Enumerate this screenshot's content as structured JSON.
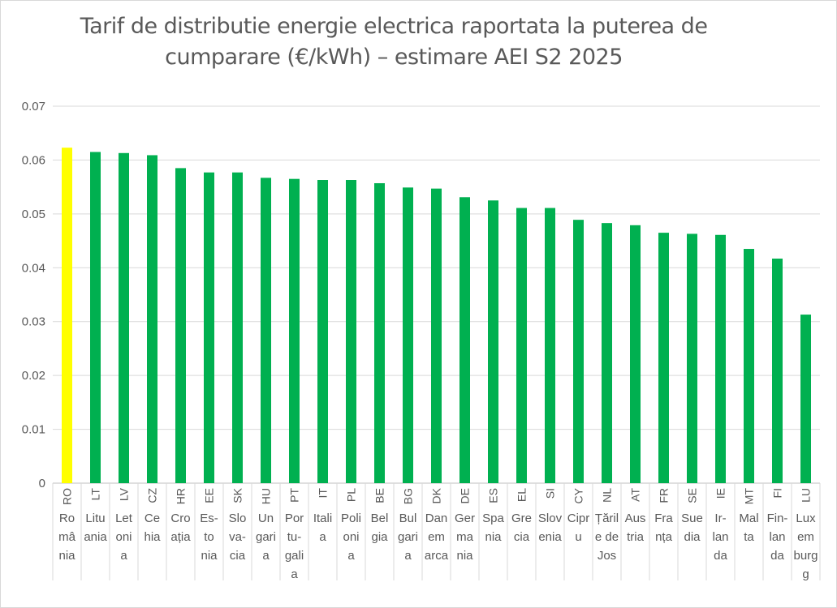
{
  "chart_data": {
    "type": "bar",
    "title": "Tarif de distributie energie electrica raportata la puterea de cumparare (€/kWh) – estimare AEI S2 2025",
    "xlabel": "",
    "ylabel": "",
    "ylim": [
      0,
      0.07
    ],
    "yticks": [
      "0",
      "0.01",
      "0.02",
      "0.03",
      "0.04",
      "0.05",
      "0.06",
      "0.07"
    ],
    "grid": true,
    "categories": [
      {
        "code": "RO",
        "name": [
          "Ro",
          "mâ",
          "nia"
        ]
      },
      {
        "code": "LT",
        "name": [
          "Litu",
          "ania"
        ]
      },
      {
        "code": "LV",
        "name": [
          "Let",
          "oni",
          "a"
        ]
      },
      {
        "code": "CZ",
        "name": [
          "Ce",
          "hia"
        ]
      },
      {
        "code": "HR",
        "name": [
          "Cro",
          "ația"
        ]
      },
      {
        "code": "EE",
        "name": [
          "Es-",
          "to",
          "nia"
        ]
      },
      {
        "code": "SK",
        "name": [
          "Slo",
          "va-",
          "cia"
        ]
      },
      {
        "code": "HU",
        "name": [
          "Un",
          "gari",
          "a"
        ]
      },
      {
        "code": "PT",
        "name": [
          "Por",
          "tu-",
          "gali",
          "a"
        ]
      },
      {
        "code": "IT",
        "name": [
          "Itali",
          "a"
        ]
      },
      {
        "code": "PL",
        "name": [
          "Poli",
          "oni",
          "a"
        ]
      },
      {
        "code": "BE",
        "name": [
          "Bel",
          "gia"
        ]
      },
      {
        "code": "BG",
        "name": [
          "Bul",
          "gari",
          "a"
        ]
      },
      {
        "code": "DK",
        "name": [
          "Dan",
          "em",
          "arca"
        ]
      },
      {
        "code": "DE",
        "name": [
          "Ger",
          "ma",
          "nia"
        ]
      },
      {
        "code": "ES",
        "name": [
          "Spa",
          "nia"
        ]
      },
      {
        "code": "EL",
        "name": [
          "Gre",
          "cia"
        ]
      },
      {
        "code": "SI",
        "name": [
          "Slov",
          "enia"
        ]
      },
      {
        "code": "CY",
        "name": [
          "Cipr",
          "u"
        ]
      },
      {
        "code": "NL",
        "name": [
          "Țăril",
          "e de",
          "Jos"
        ]
      },
      {
        "code": "AT",
        "name": [
          "Aus",
          "tria"
        ]
      },
      {
        "code": "FR",
        "name": [
          "Fra",
          "nța"
        ]
      },
      {
        "code": "SE",
        "name": [
          "Sue",
          "dia"
        ]
      },
      {
        "code": "IE",
        "name": [
          "Ir-",
          "lan",
          "da"
        ]
      },
      {
        "code": "MT",
        "name": [
          "Mal",
          "ta"
        ]
      },
      {
        "code": "FI",
        "name": [
          "Fin-",
          "lan",
          "da"
        ]
      },
      {
        "code": "LU",
        "name": [
          "Lux",
          "em",
          "burg",
          "g"
        ]
      }
    ],
    "values": [
      0.0623,
      0.0615,
      0.0613,
      0.0609,
      0.0585,
      0.0577,
      0.0577,
      0.0567,
      0.0565,
      0.0563,
      0.0563,
      0.0557,
      0.0549,
      0.0547,
      0.0531,
      0.0525,
      0.0511,
      0.0511,
      0.0489,
      0.0483,
      0.0479,
      0.0465,
      0.0463,
      0.0461,
      0.0435,
      0.0417,
      0.0313
    ],
    "highlight_color": "#ffff00",
    "bar_color": "#00b050"
  }
}
